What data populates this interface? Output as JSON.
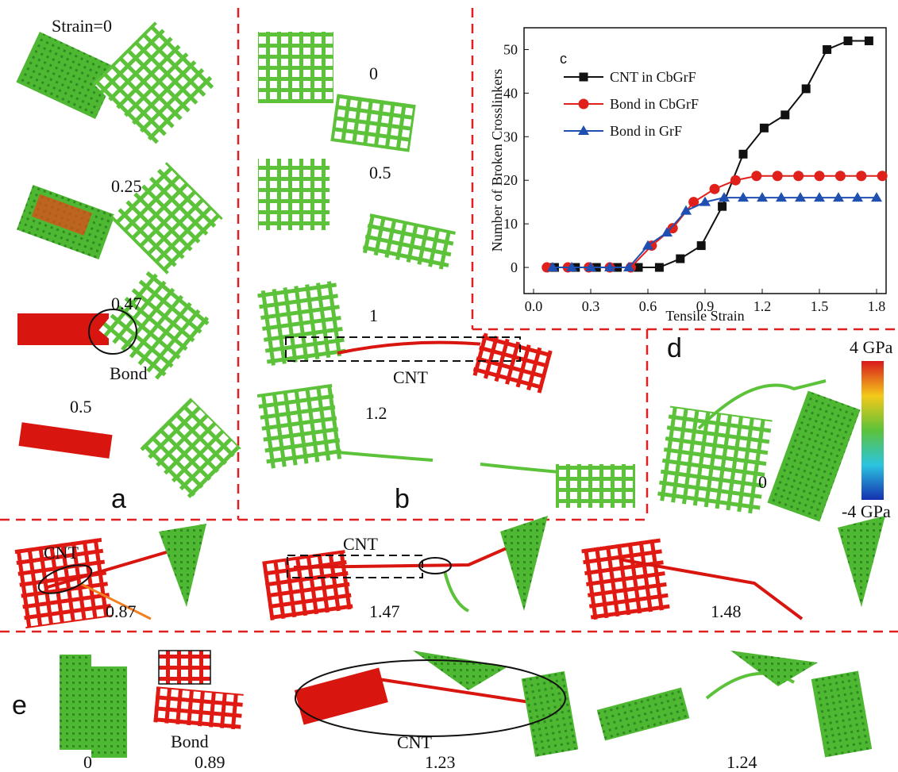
{
  "chart_data": {
    "type": "line",
    "panel_label": "c",
    "x_label": "Tensile Strain",
    "y_label": "Number of Broken Crosslinkers",
    "xlim": [
      -0.05,
      1.85
    ],
    "ylim": [
      -6,
      55
    ],
    "xticks": [
      {
        "value": 0,
        "label": "0.0"
      },
      0.3,
      0.6,
      0.9,
      1.2,
      1.5,
      1.8
    ],
    "yticks": [
      0,
      10,
      20,
      30,
      40,
      50
    ],
    "legend": "upper left",
    "series": [
      {
        "name": "CNT in CbGrF",
        "color": "#111111",
        "marker": "square",
        "x": [
          0.11,
          0.22,
          0.33,
          0.44,
          0.55,
          0.66,
          0.77,
          0.88,
          0.99,
          1.1,
          1.21,
          1.32,
          1.43,
          1.54,
          1.65,
          1.76
        ],
        "values": [
          0,
          0,
          0,
          0,
          0,
          0,
          2,
          5,
          14,
          26,
          32,
          35,
          41,
          50,
          52,
          52
        ]
      },
      {
        "name": "Bond in CbGrF",
        "color": "#e0201a",
        "marker": "circle",
        "x": [
          0.07,
          0.18,
          0.29,
          0.4,
          0.51,
          0.62,
          0.73,
          0.84,
          0.95,
          1.06,
          1.17,
          1.28,
          1.39,
          1.5,
          1.61,
          1.72,
          1.83
        ],
        "values": [
          0,
          0,
          0,
          0,
          0,
          5,
          9,
          15,
          18,
          20,
          21,
          21,
          21,
          21,
          21,
          21,
          21
        ]
      },
      {
        "name": "Bond in GrF",
        "color": "#1f4fb0",
        "marker": "triangle",
        "x": [
          0.1,
          0.2,
          0.3,
          0.4,
          0.5,
          0.6,
          0.7,
          0.8,
          0.9,
          1.0,
          1.1,
          1.2,
          1.3,
          1.4,
          1.5,
          1.6,
          1.7,
          1.8
        ],
        "values": [
          0,
          0,
          0,
          0,
          0,
          5,
          8,
          13,
          15,
          16,
          16,
          16,
          16,
          16,
          16,
          16,
          16,
          16
        ]
      }
    ]
  },
  "panel_texts": [
    "Strain=0",
    "0.25",
    "0.47",
    "Bond",
    "0.5",
    "a",
    "0",
    "0.5",
    "1",
    "CNT",
    "1.2",
    "b",
    "d",
    "4 GPa",
    "-4 GPa",
    "0",
    "CNT",
    "0.87",
    "CNT",
    "1.47",
    "1.48",
    "e",
    "0",
    "Bond",
    "0.89",
    "CNT",
    "1.23",
    "1.24"
  ]
}
